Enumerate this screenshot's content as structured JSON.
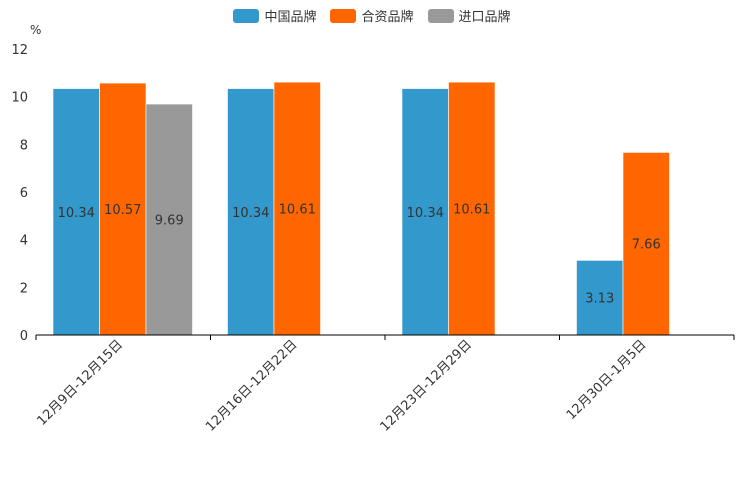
{
  "chart_data": {
    "type": "bar",
    "title": "",
    "ylabel": "%",
    "xlabel": "",
    "ylim": [
      0,
      12
    ],
    "yticks": [
      0,
      2,
      4,
      6,
      8,
      10,
      12
    ],
    "categories": [
      "12月9日-12月15日",
      "12月16日-12月22日",
      "12月23日-12月29日",
      "12月30日-1月5日"
    ],
    "series": [
      {
        "name": "中国品牌",
        "color": "#3399CC",
        "values": [
          10.34,
          10.34,
          10.34,
          3.13
        ]
      },
      {
        "name": "合资品牌",
        "color": "#FF6600",
        "values": [
          10.57,
          10.61,
          10.61,
          7.66
        ]
      },
      {
        "name": "进口品牌",
        "color": "#999999",
        "values": [
          9.69,
          null,
          null,
          null
        ]
      }
    ],
    "legend_position": "top-center",
    "grid": false
  }
}
